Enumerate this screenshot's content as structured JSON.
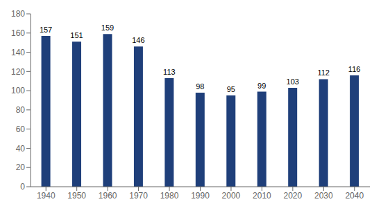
{
  "chart_data": {
    "type": "bar",
    "categories": [
      "1940",
      "1950",
      "1960",
      "1970",
      "1980",
      "1990",
      "2000",
      "2010",
      "2020",
      "2030",
      "2040"
    ],
    "values": [
      157,
      151,
      159,
      146,
      113,
      98,
      95,
      99,
      103,
      112,
      116
    ],
    "color": "#1F3F7A",
    "ylim": [
      0,
      180
    ],
    "yticks": [
      0,
      20,
      40,
      60,
      80,
      100,
      120,
      140,
      160,
      180
    ],
    "grid": false,
    "data_labels": true
  }
}
